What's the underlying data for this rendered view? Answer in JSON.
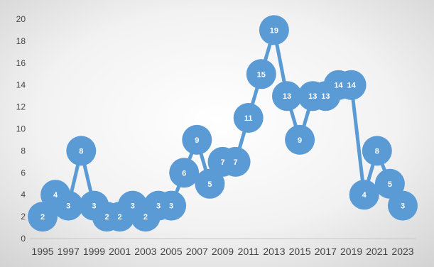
{
  "chart_data": {
    "type": "line",
    "title": "",
    "xlabel": "",
    "ylabel": "",
    "x": [
      1995,
      1996,
      1997,
      1998,
      1999,
      2000,
      2001,
      2002,
      2003,
      2004,
      2005,
      2006,
      2007,
      2008,
      2009,
      2010,
      2011,
      2012,
      2013,
      2014,
      2015,
      2016,
      2017,
      2018,
      2019,
      2020,
      2021,
      2022,
      2023
    ],
    "x_tick_labels": [
      "1995",
      "1997",
      "1999",
      "2001",
      "2003",
      "2005",
      "2007",
      "2009",
      "2011",
      "2013",
      "2015",
      "2017",
      "2019",
      "2021",
      "2023"
    ],
    "y_tick_labels": [
      "0",
      "2",
      "4",
      "6",
      "8",
      "10",
      "12",
      "14",
      "16",
      "18",
      "20"
    ],
    "series": [
      {
        "values": [
          2,
          4,
          3,
          8,
          3,
          2,
          2,
          3,
          2,
          3,
          3,
          6,
          9,
          5,
          7,
          7,
          11,
          15,
          19,
          13,
          9,
          13,
          13,
          14,
          14,
          4,
          8,
          5,
          3
        ],
        "data_labels": [
          "2",
          "4",
          "3",
          "8",
          "3",
          "2",
          "2",
          "3",
          "2",
          "3",
          "3",
          "6",
          "9",
          "5",
          "7",
          "7",
          "11",
          "15",
          "19",
          "13",
          "9",
          "13",
          "13",
          "14",
          "14",
          "4",
          "8",
          "5",
          "3"
        ]
      }
    ],
    "ylim": [
      0,
      20
    ],
    "y_tick_step": 2,
    "grid": false,
    "legend": "none",
    "colors": {
      "series": "#5b9bd5",
      "label": "#ffffff",
      "axis_text": "#444444",
      "axis_line": "#c8c8c8"
    }
  }
}
